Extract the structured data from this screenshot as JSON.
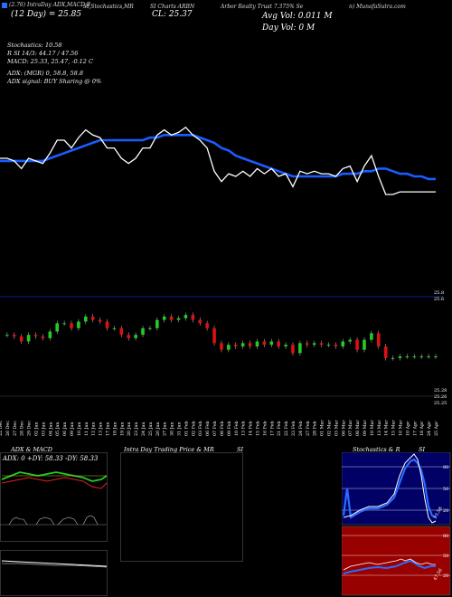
{
  "header": {
    "symbol_line": "(2.76) IntraDay ADX,MACD,B",
    "stoch_line": "SI,Stochastics,MR",
    "sym_line": "SI Charts ARBN",
    "desc_line": "Arbor Realty Trust 7.375% Se",
    "site_line": "n) MunafaSutra.com",
    "open_line": "(12 Day) = 25.85",
    "close_line": "CL: 25.37",
    "avg_vol": "Avg Vol: 0.011 M",
    "day_vol": "Day Vol: 0 M"
  },
  "indicators": {
    "stochastics": "Stochastics: 10.58",
    "si": "R          SI 14/3: 44.17 / 47.56",
    "macd": "MACD: 25.33, 25.47, -0.12  C",
    "adx": "ADX:                          (MGR) 0, 58.8, 58.8",
    "adx_signal": "ADX  signal:                              BUY Sharing @ 0%"
  },
  "candle_panel": {
    "price_high": "25.8",
    "price_high2": "25.6",
    "price_low": "25.28",
    "price_low2": "25.26",
    "price_low3": "25.25"
  },
  "dates": [
    "22 Dec",
    "26 Dec",
    "27 Dec",
    "28 Dec",
    "29 Dec",
    "02 Jan",
    "03 Jan",
    "04 Jan",
    "05 Jan",
    "06 Jan",
    "09 Jan",
    "10 Jan",
    "11 Jan",
    "12 Jan",
    "13 Jan",
    "17 Jan",
    "18 Jan",
    "19 Jan",
    "20 Jan",
    "23 Jan",
    "24 Jan",
    "25 Jan",
    "26 Jan",
    "27 Jan",
    "30 Jan",
    "31 Jan",
    "01 Feb",
    "02 Feb",
    "03 Feb",
    "06 Feb",
    "07 Feb",
    "08 Feb",
    "09 Feb",
    "10 Feb",
    "13 Feb",
    "14 Feb",
    "15 Feb",
    "16 Feb",
    "17 Feb",
    "21 Feb",
    "22 Feb",
    "23 Feb",
    "24 Feb",
    "27 Feb",
    "28 Feb",
    "01 Mar",
    "02 Mar",
    "03 Mar",
    "06 Mar",
    "07 Mar",
    "08 Mar",
    "09 Mar",
    "10 Mar",
    "13 Mar",
    "14 Mar",
    "15 Mar",
    "16 Mar",
    "10 Apr",
    "17 Apr",
    "18 Apr",
    "24 Apr",
    "25 Apr"
  ],
  "bottom": {
    "adx_title": "ADX  & MACD",
    "adx_values": "ADX: 0   +DY: 58.33  -DY: 58.33",
    "intraday_title": "Intra  Day Trading Price  & MR",
    "intraday_si": "SI",
    "stoch_title": "Stochastics & R",
    "stoch_si": "SI",
    "stoch_ticks": [
      "80",
      "50",
      "20"
    ],
    "stoch_value": "10.58",
    "mr_ticks": [
      "80",
      "50",
      "20"
    ],
    "mr_value": "47.56"
  },
  "colors": {
    "background": "#000000",
    "sma": "#1a5cff",
    "bull": "#22cc22",
    "bear": "#dd1111",
    "red_panel": "#990000",
    "stoch_panel": "#000066"
  },
  "chart_data": {
    "type": "line",
    "x": [
      "22 Dec",
      "26 Dec",
      "27 Dec",
      "28 Dec",
      "29 Dec",
      "02 Jan",
      "03 Jan",
      "04 Jan",
      "05 Jan",
      "06 Jan",
      "09 Jan",
      "10 Jan",
      "11 Jan",
      "12 Jan",
      "13 Jan",
      "17 Jan",
      "18 Jan",
      "19 Jan",
      "20 Jan",
      "23 Jan",
      "24 Jan",
      "25 Jan",
      "26 Jan",
      "27 Jan",
      "30 Jan",
      "31 Jan",
      "01 Feb",
      "02 Feb",
      "03 Feb",
      "06 Feb",
      "07 Feb",
      "08 Feb",
      "09 Feb",
      "10 Feb",
      "13 Feb",
      "14 Feb",
      "15 Feb",
      "16 Feb",
      "17 Feb",
      "21 Feb",
      "22 Feb",
      "23 Feb",
      "24 Feb",
      "27 Feb",
      "28 Feb",
      "01 Mar",
      "02 Mar",
      "03 Mar",
      "06 Mar",
      "07 Mar",
      "08 Mar",
      "09 Mar",
      "10 Mar",
      "13 Mar",
      "14 Mar",
      "15 Mar",
      "16 Mar",
      "10 Apr",
      "17 Apr",
      "18 Apr",
      "24 Apr",
      "25 Apr"
    ],
    "series": [
      {
        "values": [
          25.62,
          25.62,
          25.61,
          25.58,
          25.62,
          25.61,
          25.6,
          25.64,
          25.69,
          25.69,
          25.66,
          25.7,
          25.73,
          25.71,
          25.7,
          25.66,
          25.66,
          25.62,
          25.6,
          25.62,
          25.66,
          25.66,
          25.71,
          25.73,
          25.71,
          25.72,
          25.74,
          25.71,
          25.69,
          25.66,
          25.57,
          25.53,
          25.56,
          25.55,
          25.57,
          25.55,
          25.58,
          25.56,
          25.58,
          25.55,
          25.56,
          25.51,
          25.57,
          25.56,
          25.57,
          25.56,
          25.56,
          25.55,
          25.58,
          25.59,
          25.53,
          25.59,
          25.63,
          25.55,
          25.48,
          25.48,
          25.49,
          25.49,
          25.49,
          25.49,
          25.49,
          25.49
        ]
      },
      {
        "values": [
          25.61,
          25.61,
          25.61,
          25.61,
          25.61,
          25.61,
          25.61,
          25.62,
          25.63,
          25.64,
          25.65,
          25.66,
          25.67,
          25.68,
          25.69,
          25.69,
          25.69,
          25.69,
          25.69,
          25.69,
          25.69,
          25.7,
          25.7,
          25.71,
          25.71,
          25.71,
          25.71,
          25.71,
          25.7,
          25.69,
          25.68,
          25.66,
          25.65,
          25.63,
          25.62,
          25.61,
          25.6,
          25.59,
          25.58,
          25.57,
          25.56,
          25.55,
          25.55,
          25.55,
          25.55,
          25.55,
          25.55,
          25.55,
          25.56,
          25.56,
          25.56,
          25.57,
          25.57,
          25.58,
          25.58,
          25.57,
          25.56,
          25.56,
          25.55,
          25.55,
          25.54,
          25.54
        ]
      }
    ],
    "ylim": [
      25.2,
      25.9
    ]
  }
}
